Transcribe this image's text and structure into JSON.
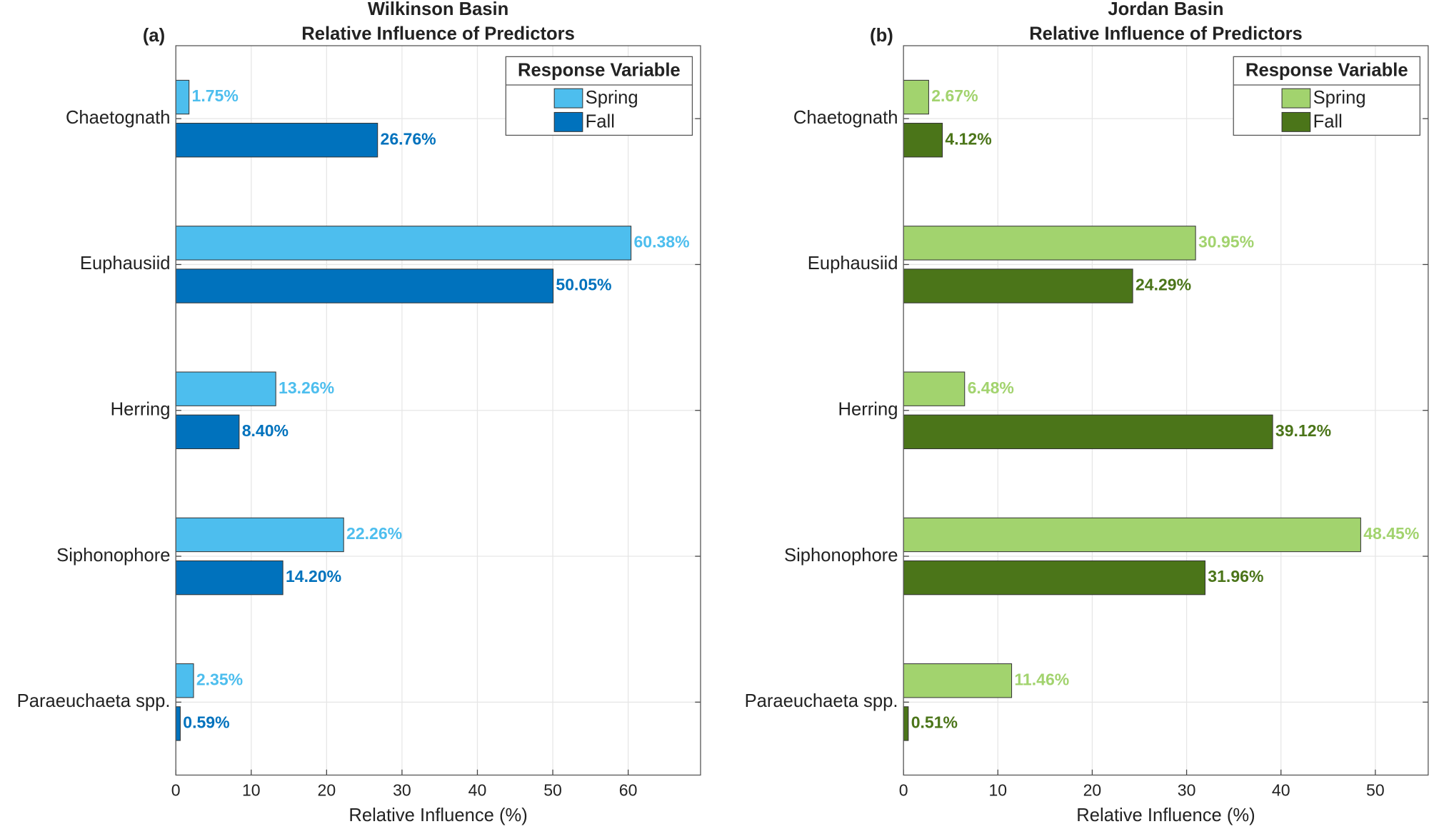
{
  "chart_data": [
    {
      "type": "bar",
      "orientation": "horizontal",
      "panel_label": "(a)",
      "title": [
        "Wilkinson Basin",
        "Relative Influence of Predictors"
      ],
      "xlabel": "Relative Influence (%)",
      "categories": [
        "Chaetognath",
        "Euphausiid",
        "Herring",
        "Siphonophore",
        "Paraeuchaeta spp."
      ],
      "series": [
        {
          "name": "Spring",
          "color": "#4dbeee",
          "values": [
            1.75,
            60.38,
            13.26,
            22.26,
            2.35
          ],
          "value_labels": [
            "1.75%",
            "60.38%",
            "13.26%",
            "22.26%",
            "2.35%"
          ]
        },
        {
          "name": "Fall",
          "color": "#0072bd",
          "values": [
            26.76,
            50.05,
            8.4,
            14.2,
            0.59
          ],
          "value_labels": [
            "26.76%",
            "50.05%",
            "8.40%",
            "14.20%",
            "0.59%"
          ]
        }
      ],
      "legend_title": "Response Variable",
      "legend": "upper right",
      "xlim": [
        0,
        69.6
      ],
      "xticks": [
        0,
        10,
        20,
        30,
        40,
        50,
        60
      ],
      "grid": true
    },
    {
      "type": "bar",
      "orientation": "horizontal",
      "panel_label": "(b)",
      "title": [
        "Jordan Basin",
        "Relative Influence of Predictors"
      ],
      "xlabel": "Relative Influence (%)",
      "categories": [
        "Chaetognath",
        "Euphausiid",
        "Herring",
        "Siphonophore",
        "Paraeuchaeta spp."
      ],
      "series": [
        {
          "name": "Spring",
          "color": "#a2d36e",
          "values": [
            2.67,
            30.95,
            6.48,
            48.45,
            11.46
          ],
          "value_labels": [
            "2.67%",
            "30.95%",
            "6.48%",
            "48.45%",
            "11.46%"
          ]
        },
        {
          "name": "Fall",
          "color": "#4b7519",
          "values": [
            4.12,
            24.29,
            39.12,
            31.96,
            0.51
          ],
          "value_labels": [
            "4.12%",
            "24.29%",
            "39.12%",
            "31.96%",
            "0.51%"
          ]
        }
      ],
      "legend_title": "Response Variable",
      "legend": "upper right",
      "xlim": [
        0,
        55.6
      ],
      "xticks": [
        0,
        10,
        20,
        30,
        40,
        50
      ],
      "grid": true
    }
  ]
}
